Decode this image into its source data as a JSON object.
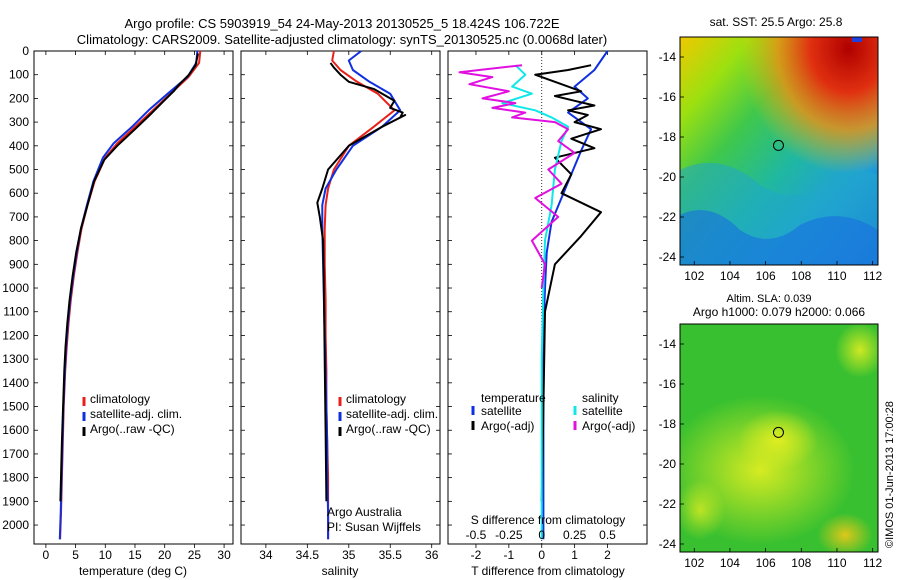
{
  "header": {
    "line1": "Argo profile: CS 5903919_54 24-May-2013 20130525_5 18.424S 106.722E",
    "line2": "Climatology: CARS2009. Satellite-adjusted climatology: synTS_20130525.nc (0.0068d later)"
  },
  "colors": {
    "clim": "#e8201a",
    "sat": "#1030e0",
    "argo": "#000000",
    "sat_s": "#10e8e8",
    "argo_s": "#e010e0"
  },
  "depth_ticks": [
    0,
    100,
    200,
    300,
    400,
    500,
    600,
    700,
    800,
    900,
    1000,
    1100,
    1200,
    1300,
    1400,
    1500,
    1600,
    1700,
    1800,
    1900,
    2000
  ],
  "chart_data": [
    {
      "type": "line",
      "name": "temperature-profile",
      "xlabel": "temperature (deg C)",
      "xlim": [
        -2,
        31.5
      ],
      "ylim": [
        2080,
        0
      ],
      "xticks": [
        0,
        5,
        10,
        15,
        20,
        25,
        30
      ],
      "legend": [
        "climatology",
        "satellite-adj. clim.",
        "Argo(..raw -QC)"
      ],
      "series": [
        {
          "name": "climatology",
          "color": "clim",
          "x": [
            26.0,
            25.8,
            24,
            21,
            18,
            15,
            12,
            10,
            8.2,
            7.0,
            6.0,
            5.3,
            4.7,
            4.2,
            3.8,
            3.5,
            3.25,
            3.0,
            2.85,
            2.7,
            2.55,
            2.4
          ],
          "y": [
            0,
            50,
            110,
            180,
            250,
            320,
            390,
            450,
            550,
            650,
            750,
            850,
            950,
            1050,
            1150,
            1250,
            1350,
            1500,
            1650,
            1800,
            1950,
            2060
          ]
        },
        {
          "name": "satellite-adj. clim.",
          "color": "sat",
          "x": [
            25.5,
            25.3,
            23.8,
            20.5,
            17.3,
            14.5,
            11.4,
            9.6,
            8.0,
            6.9,
            5.9,
            5.2,
            4.6,
            4.1,
            3.7,
            3.4,
            3.2,
            2.95,
            2.8,
            2.65,
            2.5,
            2.35
          ],
          "y": [
            0,
            50,
            110,
            180,
            250,
            320,
            390,
            450,
            550,
            650,
            750,
            850,
            950,
            1050,
            1150,
            1250,
            1350,
            1500,
            1650,
            1800,
            1950,
            2060
          ]
        },
        {
          "name": "Argo(..raw -QC)",
          "color": "argo",
          "x": [
            25.6,
            25.2,
            24.1,
            22.5,
            21.5,
            19.5,
            17.5,
            15.0,
            12.0,
            9.8,
            8.1,
            7.0,
            5.9,
            5.1,
            4.5,
            4.0,
            3.6,
            3.3,
            3.1,
            2.9,
            2.7,
            2.55,
            2.45
          ],
          "y": [
            10,
            60,
            100,
            140,
            170,
            220,
            270,
            330,
            400,
            460,
            550,
            650,
            750,
            850,
            950,
            1050,
            1150,
            1250,
            1350,
            1500,
            1650,
            1800,
            1900
          ]
        }
      ]
    },
    {
      "type": "line",
      "name": "salinity-profile",
      "xlabel": "salinity",
      "xlim": [
        33.7,
        36.1
      ],
      "ylim": [
        2080,
        0
      ],
      "xticks": [
        34,
        34.5,
        35,
        35.5,
        36
      ],
      "legend": [
        "climatology",
        "satellite-adj. clim.",
        "Argo(..raw -QC)"
      ],
      "annotation": [
        "Argo Australia",
        "PI: Susan Wijffels"
      ],
      "series": [
        {
          "name": "climatology",
          "color": "clim",
          "x": [
            34.82,
            34.8,
            34.9,
            35.1,
            35.35,
            35.55,
            35.3,
            35.0,
            34.82,
            34.75,
            34.72,
            34.71,
            34.71,
            34.72,
            34.72,
            34.73,
            34.73,
            34.74,
            34.75,
            34.75,
            34.75
          ],
          "y": [
            0,
            40,
            80,
            130,
            180,
            250,
            320,
            400,
            500,
            580,
            650,
            750,
            900,
            1050,
            1200,
            1350,
            1500,
            1650,
            1800,
            1950,
            2060
          ]
        },
        {
          "name": "satellite-adj. clim.",
          "color": "sat",
          "x": [
            35.15,
            35.0,
            35.05,
            35.25,
            35.5,
            35.62,
            35.4,
            35.05,
            34.85,
            34.72,
            34.68,
            34.68,
            34.69,
            34.7,
            34.71,
            34.72,
            34.73,
            34.74,
            34.74,
            34.75,
            34.75
          ],
          "y": [
            0,
            40,
            80,
            130,
            180,
            250,
            320,
            400,
            500,
            580,
            650,
            750,
            900,
            1050,
            1200,
            1350,
            1500,
            1650,
            1800,
            1950,
            2060
          ]
        },
        {
          "name": "Argo(..raw -QC)",
          "color": "argo",
          "x": [
            34.78,
            34.82,
            34.9,
            35.0,
            35.3,
            35.45,
            35.55,
            35.5,
            35.65,
            35.62,
            35.68,
            35.4,
            35.0,
            34.75,
            34.68,
            34.62,
            34.65,
            34.69,
            34.7,
            34.71,
            34.72,
            34.73
          ],
          "y": [
            50,
            70,
            100,
            130,
            160,
            190,
            210,
            240,
            260,
            280,
            270,
            320,
            400,
            500,
            580,
            640,
            700,
            800,
            1000,
            1300,
            1600,
            1900
          ]
        }
      ]
    },
    {
      "type": "line",
      "name": "difference-profile",
      "xlabel": "T difference from climatology",
      "xlabel_top": "S difference from climatology",
      "xlim": [
        -2.85,
        3.2
      ],
      "ylim": [
        2080,
        0
      ],
      "xticks": [
        -2,
        -1,
        0,
        1,
        2
      ],
      "s_ticks": [
        "-0.5",
        "-0.25",
        "0",
        "0.25",
        "0.5"
      ],
      "s_tick_pos": [
        -2,
        -1,
        0,
        1,
        2
      ],
      "legend": [
        {
          "header": "temperature",
          "items": [
            "satellite",
            "Argo(-adj)"
          ]
        },
        {
          "header": "salinity",
          "items": [
            "satellite",
            "Argo(-adj)"
          ]
        }
      ],
      "series": [
        {
          "name": "T satellite",
          "color": "sat",
          "x": [
            2.0,
            1.6,
            1.0,
            1.4,
            0.8,
            1.5,
            1.2,
            0.9,
            0.6,
            0.3,
            0.15,
            0.1,
            0.05,
            0.05,
            0.05,
            0.05,
            0.05,
            0.05
          ],
          "y": [
            0,
            80,
            150,
            200,
            260,
            330,
            420,
            520,
            620,
            720,
            850,
            1000,
            1200,
            1400,
            1600,
            1800,
            1950,
            2060
          ]
        },
        {
          "name": "T Argo(-adj)",
          "color": "argo",
          "x": [
            1.5,
            0.8,
            -0.2,
            0.2,
            0.6,
            1.2,
            0.4,
            1.0,
            1.6,
            0.8,
            1.4,
            1.0,
            1.8,
            0.9,
            1.6,
            0.4,
            0.9,
            0.6,
            1.8,
            1.2,
            0.4,
            0.1,
            0.05,
            0.0
          ],
          "y": [
            60,
            80,
            100,
            120,
            140,
            170,
            190,
            210,
            230,
            250,
            270,
            300,
            330,
            370,
            410,
            450,
            520,
            600,
            680,
            780,
            900,
            1100,
            1500,
            1900
          ]
        },
        {
          "name": "S satellite",
          "color": "sat_s",
          "x": [
            -0.8,
            -0.5,
            -0.9,
            -0.3,
            -1.2,
            -0.2,
            0.3,
            0.8,
            0.6,
            0.4,
            0.3,
            0.1,
            0.05,
            0.0,
            0.0,
            0.0,
            0.0
          ],
          "y": [
            60,
            100,
            150,
            180,
            220,
            250,
            280,
            320,
            380,
            500,
            650,
            800,
            1000,
            1300,
            1600,
            1900,
            2060
          ]
        },
        {
          "name": "S Argo(-adj)",
          "color": "argo_s",
          "x": [
            -0.6,
            -2.5,
            -1.5,
            -2.2,
            -1.0,
            -1.8,
            -0.8,
            -1.5,
            -0.5,
            -0.9,
            0.4,
            0.8,
            0.5,
            1.0,
            0.2,
            0.6,
            -0.2,
            0.5,
            -0.3,
            0.1,
            0.0
          ],
          "y": [
            60,
            90,
            110,
            140,
            170,
            200,
            220,
            240,
            260,
            280,
            300,
            330,
            380,
            430,
            500,
            560,
            620,
            700,
            800,
            900,
            1000
          ]
        }
      ]
    }
  ],
  "sst_map": {
    "title": "sat. SST: 25.5  Argo: 25.8",
    "lon_ticks": [
      "102",
      "104",
      "106",
      "108",
      "110",
      "112"
    ],
    "lat_ticks": [
      "-14",
      "-16",
      "-18",
      "-20",
      "-22",
      "-24"
    ],
    "marker_lon": 106.72,
    "marker_lat": -18.42
  },
  "sla_map": {
    "title_line1": "Altim. SLA: 0.039",
    "title_line2": "Argo h1000: 0.079 h2000: 0.066",
    "lon_ticks": [
      "102",
      "104",
      "106",
      "108",
      "110",
      "112"
    ],
    "lat_ticks": [
      "-14",
      "-16",
      "-18",
      "-20",
      "-22",
      "-24"
    ],
    "marker_lon": 106.72,
    "marker_lat": -18.42
  },
  "side_label": "©IMOS 01-Jun-2013 17:00:28"
}
